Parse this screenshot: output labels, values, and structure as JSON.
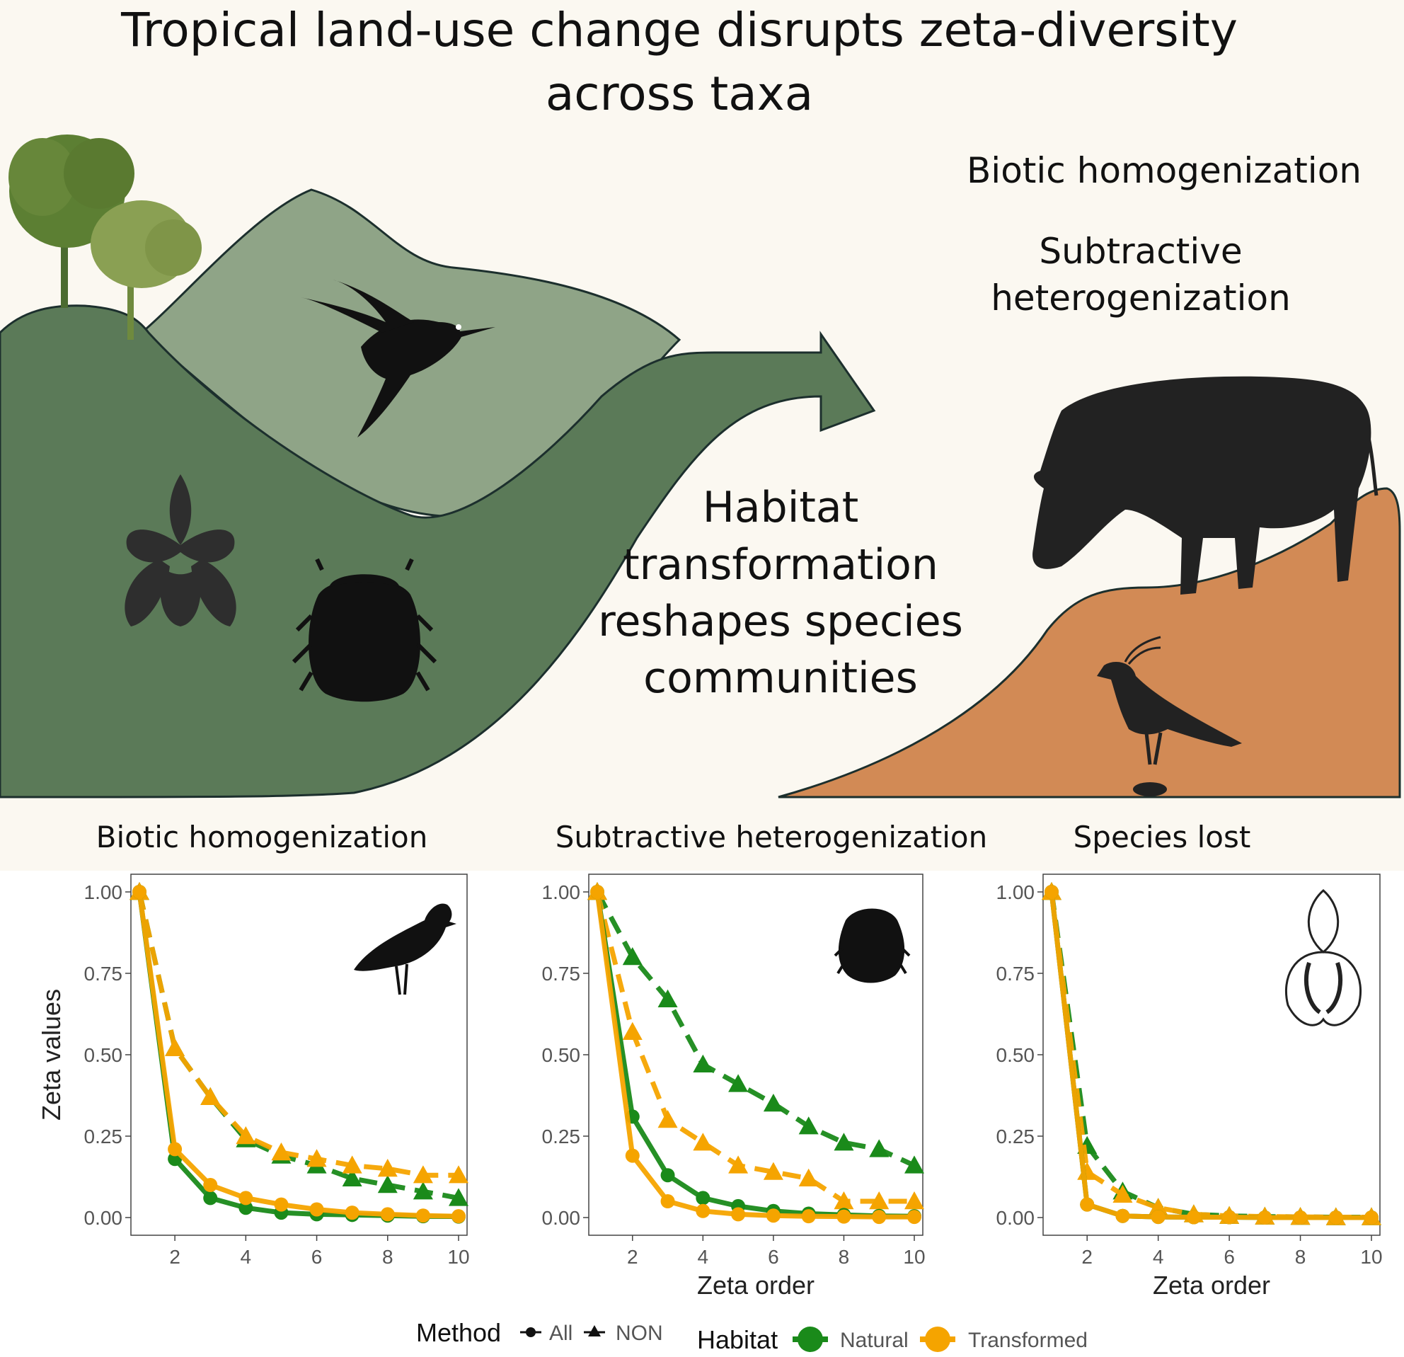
{
  "title_line1": "Tropical land-use change disrupts zeta-diversity",
  "title_line2": "across taxa",
  "right_labels": {
    "biotic": "Biotic homogenization",
    "subtractive_1": "Subtractive",
    "subtractive_2": "heterogenization"
  },
  "center_text": [
    "Habitat",
    "transformation",
    "reshapes species",
    "communities"
  ],
  "icons": [
    "trees-icon",
    "hummingbird-icon",
    "orchid-icon",
    "beetle-icon",
    "cow-icon",
    "lapwing-icon",
    "arrow-icon"
  ],
  "colors": {
    "natural": "#1a8a1a",
    "transformed": "#f5a400",
    "forest_dark": "#5b7a58",
    "forest_light": "#8fa487",
    "pasture": "#d28a55",
    "background": "#fbf8f1"
  },
  "legend": {
    "method_title": "Method",
    "method_all": "All",
    "method_non": "NON",
    "habitat_title": "Habitat",
    "habitat_natural": "Natural",
    "habitat_transformed": "Transformed"
  },
  "chart_data": [
    {
      "type": "line",
      "title": "Biotic homogenization",
      "xlabel": "",
      "ylabel": "Zeta values",
      "ylim": [
        0,
        1
      ],
      "xlim": [
        1,
        10
      ],
      "x": [
        1,
        2,
        3,
        4,
        5,
        6,
        7,
        8,
        9,
        10
      ],
      "icon": "lapwing-icon",
      "series": [
        {
          "name": "All Natural",
          "values": [
            1.0,
            0.18,
            0.06,
            0.03,
            0.015,
            0.01,
            0.008,
            0.006,
            0.004,
            0.003
          ]
        },
        {
          "name": "All Transformed",
          "values": [
            1.0,
            0.21,
            0.1,
            0.06,
            0.04,
            0.025,
            0.015,
            0.01,
            0.006,
            0.004
          ]
        },
        {
          "name": "NON Natural",
          "values": [
            1.0,
            0.52,
            0.37,
            0.24,
            0.19,
            0.16,
            0.12,
            0.1,
            0.08,
            0.06
          ]
        },
        {
          "name": "NON Transformed",
          "values": [
            1.0,
            0.52,
            0.37,
            0.25,
            0.2,
            0.18,
            0.16,
            0.15,
            0.13,
            0.13
          ]
        }
      ]
    },
    {
      "type": "line",
      "title": "Subtractive heterogenization",
      "xlabel": "Zeta order",
      "ylabel": "",
      "ylim": [
        0,
        1
      ],
      "xlim": [
        1,
        10
      ],
      "x": [
        1,
        2,
        3,
        4,
        5,
        6,
        7,
        8,
        9,
        10
      ],
      "icon": "beetle-icon",
      "series": [
        {
          "name": "All Natural",
          "values": [
            1.0,
            0.31,
            0.13,
            0.06,
            0.035,
            0.02,
            0.012,
            0.008,
            0.005,
            0.004
          ]
        },
        {
          "name": "All Transformed",
          "values": [
            1.0,
            0.19,
            0.05,
            0.02,
            0.01,
            0.006,
            0.004,
            0.003,
            0.002,
            0.002
          ]
        },
        {
          "name": "NON Natural",
          "values": [
            1.0,
            0.8,
            0.67,
            0.47,
            0.41,
            0.35,
            0.28,
            0.23,
            0.21,
            0.16
          ]
        },
        {
          "name": "NON Transformed",
          "values": [
            1.0,
            0.57,
            0.3,
            0.23,
            0.16,
            0.14,
            0.12,
            0.05,
            0.05,
            0.05
          ]
        }
      ]
    },
    {
      "type": "line",
      "title": "Species lost",
      "xlabel": "Zeta order",
      "ylabel": "",
      "ylim": [
        0,
        1
      ],
      "xlim": [
        1,
        10
      ],
      "x": [
        1,
        2,
        3,
        4,
        5,
        6,
        7,
        8,
        9,
        10
      ],
      "icon": "orchid-icon",
      "series": [
        {
          "name": "All Natural",
          "values": [
            1.0,
            0.04,
            0.005,
            0.002,
            0.001,
            0.001,
            0.0,
            0.0,
            0.0,
            0.0
          ]
        },
        {
          "name": "All Transformed",
          "values": [
            1.0,
            0.04,
            0.005,
            0.002,
            0.001,
            0.001,
            0.0,
            0.0,
            0.0,
            0.0
          ]
        },
        {
          "name": "NON Natural",
          "values": [
            1.0,
            0.22,
            0.08,
            0.03,
            0.01,
            0.005,
            0.003,
            0.002,
            0.001,
            0.001
          ]
        },
        {
          "name": "NON Transformed",
          "values": [
            1.0,
            0.14,
            0.07,
            0.03,
            0.01,
            0.005,
            0.003,
            0.002,
            0.001,
            0.001
          ]
        }
      ]
    }
  ],
  "ticks": {
    "y": [
      "0.00",
      "0.25",
      "0.50",
      "0.75",
      "1.00"
    ],
    "x": [
      "2",
      "4",
      "6",
      "8",
      "10"
    ]
  }
}
